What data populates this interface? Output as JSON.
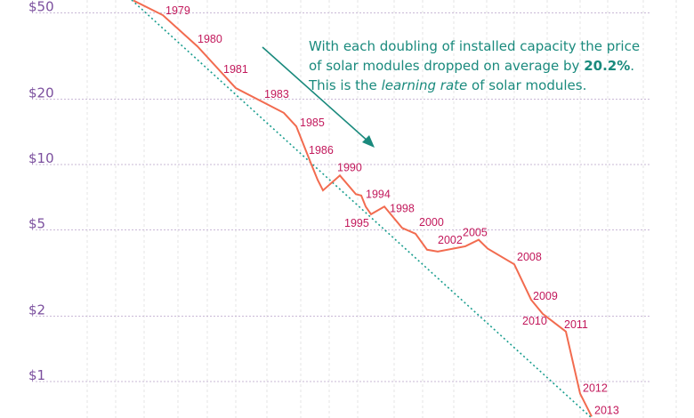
{
  "chart_data": {
    "type": "line",
    "title": "",
    "xlabel": "",
    "ylabel": "",
    "yscale": "log",
    "ylim": [
      0.65,
      58
    ],
    "y_ticks": [
      {
        "value": 50,
        "label": "$50"
      },
      {
        "value": 20,
        "label": "$20"
      },
      {
        "value": 10,
        "label": "$10"
      },
      {
        "value": 5,
        "label": "$5"
      },
      {
        "value": 2,
        "label": "$2"
      },
      {
        "value": 1,
        "label": "$1"
      }
    ],
    "grid": true,
    "colors": {
      "series": "#f26b4f",
      "trend": "#1a9e8f",
      "ticks": "#7b4f9e",
      "labels": "#c2185b",
      "annotation": "#1a8a7d"
    },
    "series": {
      "points": [
        {
          "label": "",
          "price": 57
        },
        {
          "label": "1979",
          "price": 48.8
        },
        {
          "label": "1980",
          "price": 35
        },
        {
          "label": "1981",
          "price": 22.5
        },
        {
          "label": "1983",
          "price": 17.3
        },
        {
          "label": "1985",
          "price": 15
        },
        {
          "label": "1986",
          "price": 10
        },
        {
          "label": "",
          "price": 8.5
        },
        {
          "label": "",
          "price": 7.6
        },
        {
          "label": "1990",
          "price": 8.9
        },
        {
          "label": "",
          "price": 7.3
        },
        {
          "label": "",
          "price": 7.2
        },
        {
          "label": "1994",
          "price": 6.4
        },
        {
          "label": "1995",
          "price": 5.9
        },
        {
          "label": "1998",
          "price": 6.4
        },
        {
          "label": "",
          "price": 5.1
        },
        {
          "label": "2000",
          "price": 4.8
        },
        {
          "label": "",
          "price": 4.05
        },
        {
          "label": "2002",
          "price": 3.97
        },
        {
          "label": "",
          "price": 4.2
        },
        {
          "label": "2005",
          "price": 4.5
        },
        {
          "label": "",
          "price": 4.1
        },
        {
          "label": "2008",
          "price": 3.47
        },
        {
          "label": "2009",
          "price": 2.38
        },
        {
          "label": "2010",
          "price": 2.05
        },
        {
          "label": "2011",
          "price": 1.7
        },
        {
          "label": "2012",
          "price": 0.88
        },
        {
          "label": "2013",
          "price": 0.69
        }
      ]
    },
    "trend": {
      "style": "dotted",
      "learning_rate_percent": 20.2
    },
    "annotation": {
      "line1": "With each doubling of installed capacity the price",
      "line2_pre": "of solar modules dropped on average by ",
      "line2_bold": "20.2%",
      "line2_post": ".",
      "line3_pre": "This is the ",
      "line3_italic": "learning rate",
      "line3_post": " of solar modules."
    }
  }
}
